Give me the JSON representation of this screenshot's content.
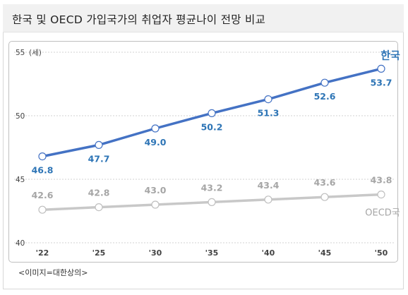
{
  "title": "한국 및 OECD 가입국가의 취업자 평균나이 전망 비교",
  "caption": "<이미지=대한상의>",
  "chart_data": {
    "type": "line",
    "x": [
      "'22",
      "'25",
      "'30",
      "'35",
      "'40",
      "'45",
      "'50"
    ],
    "ylim": [
      40,
      55
    ],
    "yticks": [
      40,
      45,
      50,
      55
    ],
    "yunit": "(세)",
    "grid": true,
    "series": [
      {
        "name": "한국",
        "values": [
          46.8,
          47.7,
          49.0,
          50.2,
          51.3,
          52.6,
          53.7
        ],
        "labels": [
          "46.8",
          "47.7",
          "49.0",
          "50.2",
          "51.3",
          "52.6",
          "53.7"
        ],
        "color": "#4472c4",
        "label_color": "#2e75b6"
      },
      {
        "name": "OECD국",
        "values": [
          42.6,
          42.8,
          43.0,
          43.2,
          43.4,
          43.6,
          43.8
        ],
        "labels": [
          "42.6",
          "42.8",
          "43.0",
          "43.2",
          "43.4",
          "43.6",
          "43.8"
        ],
        "color": "#c8c8c8",
        "label_color": "#a6a6a6"
      }
    ]
  }
}
